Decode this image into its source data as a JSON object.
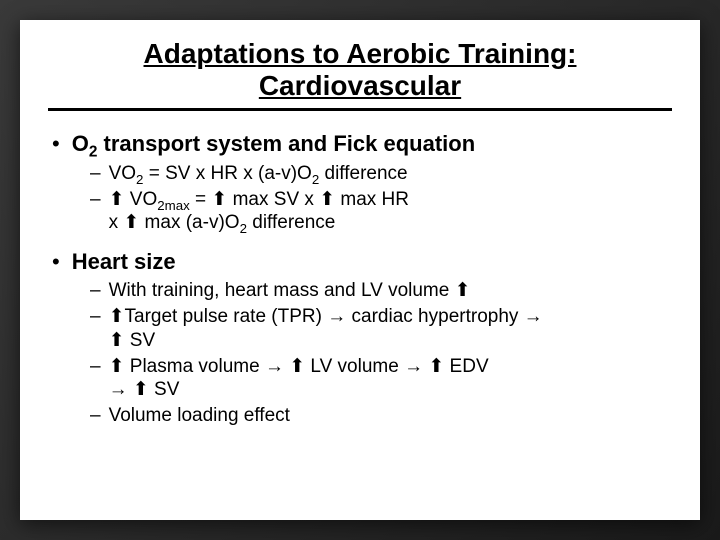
{
  "title": {
    "line1": "Adaptations to Aerobic Training:",
    "line2": "Cardiovascular"
  },
  "sections": [
    {
      "heading_before": "O",
      "heading_sub": "2",
      "heading_after": " transport system and Fick equation",
      "items": [
        {
          "lines": [
            {
              "segments": [
                {
                  "t": "VO"
                },
                {
                  "t": "2",
                  "sub": true
                },
                {
                  "t": " = SV x HR x (a-v)O"
                },
                {
                  "t": "2",
                  "sub": true
                },
                {
                  "t": " difference"
                }
              ]
            }
          ]
        },
        {
          "lines": [
            {
              "segments": [
                {
                  "t": "è",
                  "cls": "arrow-up"
                },
                {
                  "t": " VO"
                },
                {
                  "t": "2max",
                  "sub": true
                },
                {
                  "t": " = "
                },
                {
                  "t": "è",
                  "cls": "arrow-up"
                },
                {
                  "t": " max SV x "
                },
                {
                  "t": "è",
                  "cls": "arrow-up"
                },
                {
                  "t": " max HR"
                }
              ]
            },
            {
              "segments": [
                {
                  "t": "x "
                },
                {
                  "t": "è",
                  "cls": "arrow-up"
                },
                {
                  "t": " max (a-v)O"
                },
                {
                  "t": "2",
                  "sub": true
                },
                {
                  "t": " difference"
                }
              ]
            }
          ]
        }
      ]
    },
    {
      "heading_before": "Heart size",
      "heading_sub": "",
      "heading_after": "",
      "items": [
        {
          "lines": [
            {
              "segments": [
                {
                  "t": "With training, heart mass and LV volume "
                },
                {
                  "t": "è",
                  "cls": "arrow-up"
                }
              ]
            }
          ]
        },
        {
          "lines": [
            {
              "segments": [
                {
                  "t": "è",
                  "cls": "arrow-up"
                },
                {
                  "t": "Target pulse rate (TPR) "
                },
                {
                  "t": "à",
                  "cls": "arrow-rt"
                },
                {
                  "t": " cardiac hypertrophy "
                },
                {
                  "t": "à",
                  "cls": "arrow-rt"
                }
              ]
            },
            {
              "segments": [
                {
                  "t": "è",
                  "cls": "arrow-up"
                },
                {
                  "t": " SV"
                }
              ]
            }
          ]
        },
        {
          "lines": [
            {
              "segments": [
                {
                  "t": "è",
                  "cls": "arrow-up"
                },
                {
                  "t": " Plasma volume "
                },
                {
                  "t": "à",
                  "cls": "arrow-rt"
                },
                {
                  "t": " "
                },
                {
                  "t": "è",
                  "cls": "arrow-up"
                },
                {
                  "t": " LV volume "
                },
                {
                  "t": "à",
                  "cls": "arrow-rt"
                },
                {
                  "t": " "
                },
                {
                  "t": "è",
                  "cls": "arrow-up"
                },
                {
                  "t": " EDV"
                }
              ]
            },
            {
              "segments": [
                {
                  "t": "à",
                  "cls": "arrow-rt"
                },
                {
                  "t": " "
                },
                {
                  "t": "è",
                  "cls": "arrow-up"
                },
                {
                  "t": " SV"
                }
              ]
            }
          ]
        },
        {
          "lines": [
            {
              "segments": [
                {
                  "t": "Volume loading effect"
                }
              ]
            }
          ]
        }
      ]
    }
  ],
  "style": {
    "bg_gradient_from": "#3a3a3a",
    "bg_gradient_to": "#1a1a1a",
    "slide_bg": "#ffffff",
    "title_fontsize": 28,
    "l1_fontsize": 22,
    "l2_fontsize": 19,
    "up_arrow_glyph": "è",
    "right_arrow_glyph": "à"
  }
}
